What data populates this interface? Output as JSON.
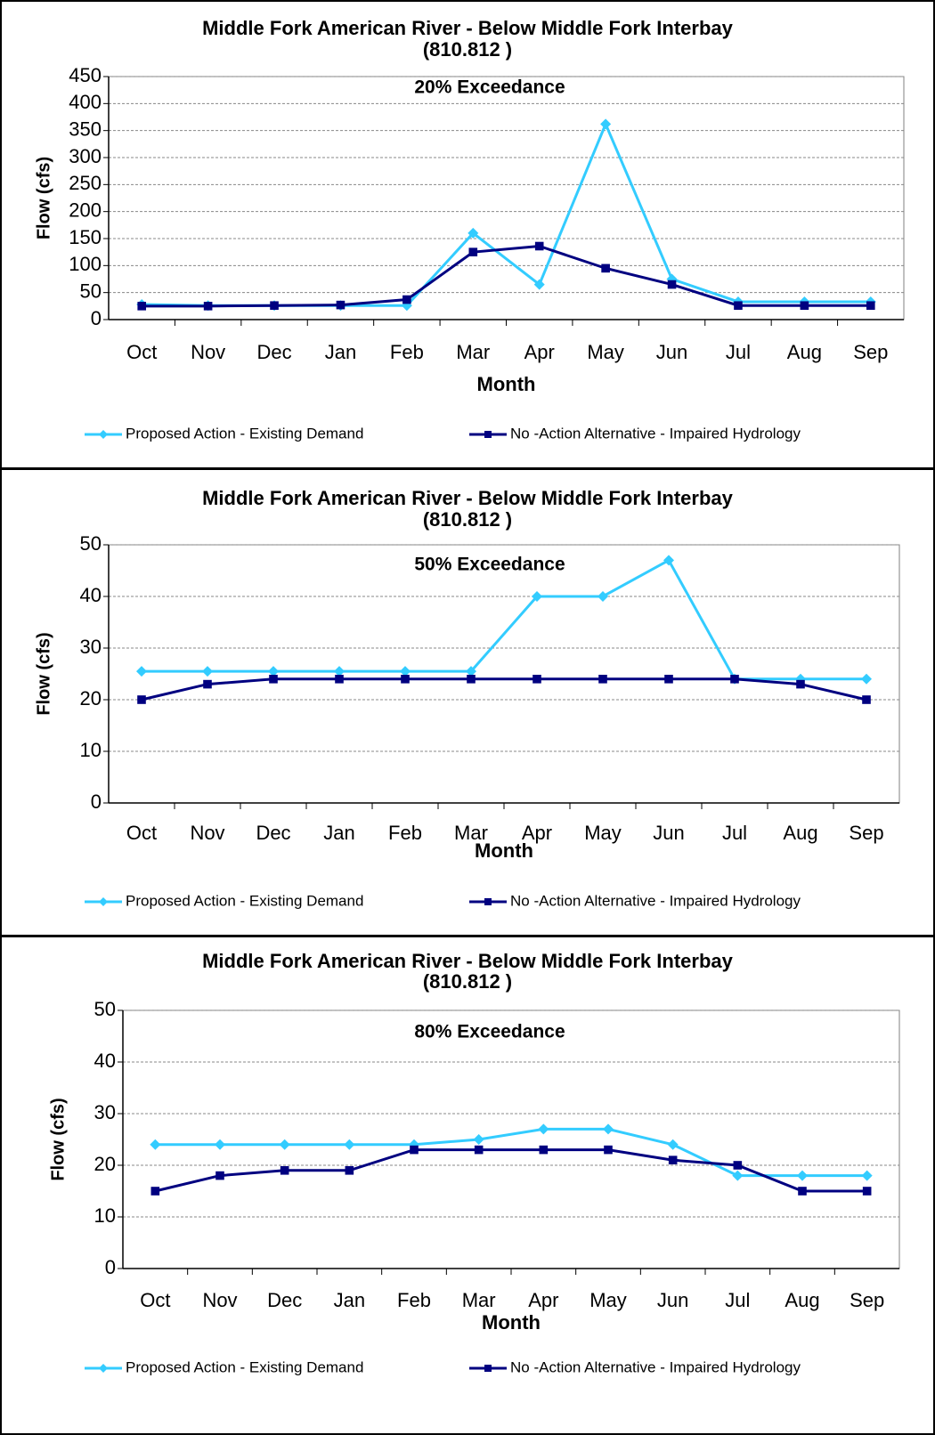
{
  "chart_data": [
    {
      "type": "line",
      "title": "Middle Fork American River - Below Middle Fork Interbay",
      "subtitle": "(810.812 )",
      "annotation": "20% Exceedance",
      "x_label": "Month",
      "y_label": "Flow (cfs)",
      "categories": [
        "Oct",
        "Nov",
        "Dec",
        "Jan",
        "Feb",
        "Mar",
        "Apr",
        "May",
        "Jun",
        "Jul",
        "Aug",
        "Sep"
      ],
      "series": [
        {
          "name": "Proposed Action - Existing Demand",
          "color": "#33ccff",
          "marker": "diamond",
          "values": [
            28,
            26,
            26,
            26,
            26,
            160,
            65,
            362,
            75,
            33,
            33,
            33
          ]
        },
        {
          "name": "No -Action Alternative - Impaired Hydrology",
          "color": "#000080",
          "marker": "square",
          "values": [
            25,
            25,
            26,
            27,
            37,
            125,
            136,
            95,
            65,
            26,
            26,
            26
          ]
        }
      ],
      "ylim": [
        0,
        450
      ],
      "yticks": [
        0,
        50,
        100,
        150,
        200,
        250,
        300,
        350,
        400,
        450
      ],
      "grid": true
    },
    {
      "type": "line",
      "title": "Middle Fork American River - Below Middle Fork Interbay",
      "subtitle": "(810.812 )",
      "annotation": "50% Exceedance",
      "x_label": "Month",
      "y_label": "Flow (cfs)",
      "categories": [
        "Oct",
        "Nov",
        "Dec",
        "Jan",
        "Feb",
        "Mar",
        "Apr",
        "May",
        "Jun",
        "Jul",
        "Aug",
        "Sep"
      ],
      "series": [
        {
          "name": "Proposed Action - Existing Demand",
          "color": "#33ccff",
          "marker": "diamond",
          "values": [
            25.5,
            25.5,
            25.5,
            25.5,
            25.5,
            25.5,
            40,
            40,
            47,
            24,
            24,
            24
          ]
        },
        {
          "name": "No -Action Alternative - Impaired Hydrology",
          "color": "#000080",
          "marker": "square",
          "values": [
            20,
            23,
            24,
            24,
            24,
            24,
            24,
            24,
            24,
            24,
            23,
            20
          ]
        }
      ],
      "ylim": [
        0,
        50
      ],
      "yticks": [
        0,
        10,
        20,
        30,
        40,
        50
      ],
      "grid": true
    },
    {
      "type": "line",
      "title": "Middle Fork American River - Below Middle Fork Interbay",
      "subtitle": "(810.812 )",
      "annotation": "80% Exceedance",
      "x_label": "Month",
      "y_label": "Flow (cfs)",
      "categories": [
        "Oct",
        "Nov",
        "Dec",
        "Jan",
        "Feb",
        "Mar",
        "Apr",
        "May",
        "Jun",
        "Jul",
        "Aug",
        "Sep"
      ],
      "series": [
        {
          "name": "Proposed Action - Existing Demand",
          "color": "#33ccff",
          "marker": "diamond",
          "values": [
            24,
            24,
            24,
            24,
            24,
            25,
            27,
            27,
            24,
            18,
            18,
            18
          ]
        },
        {
          "name": "No -Action Alternative - Impaired Hydrology",
          "color": "#000080",
          "marker": "square",
          "values": [
            15,
            18,
            19,
            19,
            23,
            23,
            23,
            23,
            21,
            20,
            15,
            15
          ]
        }
      ],
      "ylim": [
        0,
        50
      ],
      "yticks": [
        0,
        10,
        20,
        30,
        40,
        50
      ],
      "grid": true
    }
  ]
}
